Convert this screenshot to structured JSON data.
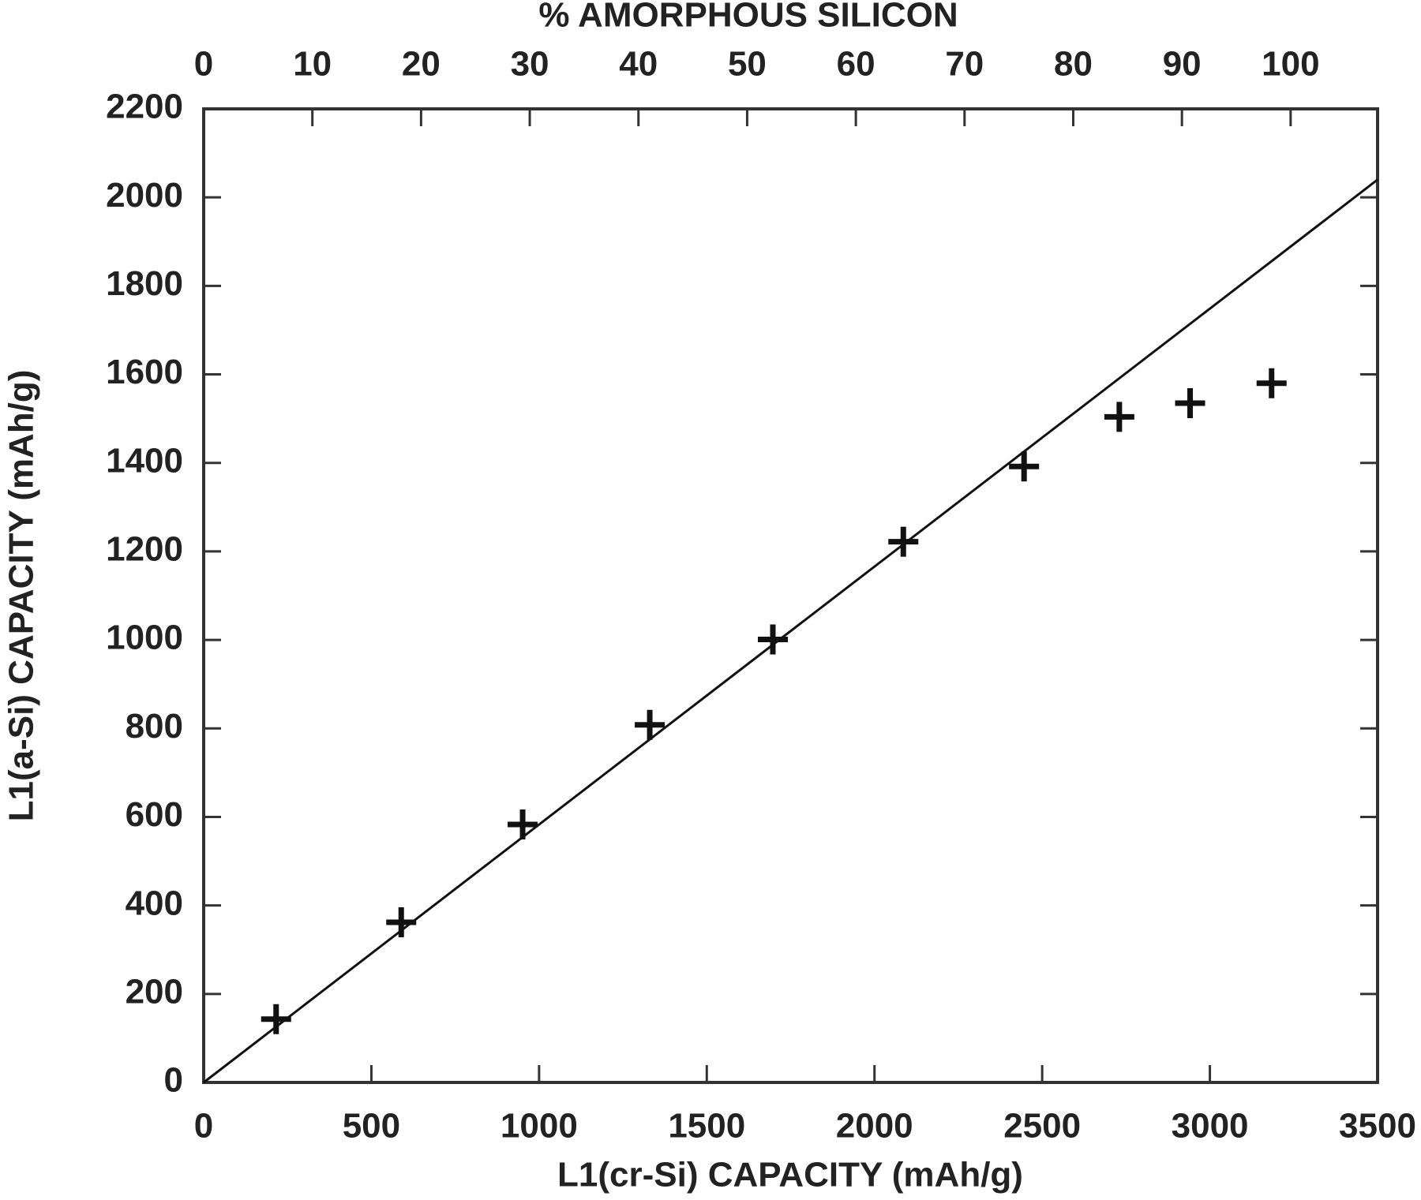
{
  "chart_data": {
    "type": "scatter",
    "x2label": "% AMORPHOUS SILICON",
    "xlabel": "L1(cr-Si) CAPACITY (mAh/g)",
    "ylabel": "L1(a-Si) CAPACITY (mAh/g)",
    "xlim": [
      0,
      3500
    ],
    "xticks": [
      0,
      500,
      1000,
      1500,
      2000,
      2500,
      3000,
      3500
    ],
    "ylim": [
      0,
      2200
    ],
    "yticks": [
      0,
      200,
      400,
      600,
      800,
      1000,
      1200,
      1400,
      1600,
      1800,
      2000,
      2200
    ],
    "x2lim": [
      0,
      108
    ],
    "x2ticks": [
      0,
      10,
      20,
      30,
      40,
      50,
      60,
      70,
      80,
      90,
      100
    ],
    "series": [
      {
        "type": "scatter",
        "marker": "plus",
        "color": "#111111",
        "x": [
          216,
          589,
          951,
          1330,
          1697,
          2086,
          2446,
          2730,
          2941,
          3184
        ],
        "values": [
          143,
          362,
          583,
          808,
          1001,
          1222,
          1392,
          1504,
          1535,
          1580
        ]
      },
      {
        "type": "line",
        "color": "#111111",
        "x": [
          0,
          3500
        ],
        "values": [
          0,
          2040
        ]
      }
    ]
  }
}
